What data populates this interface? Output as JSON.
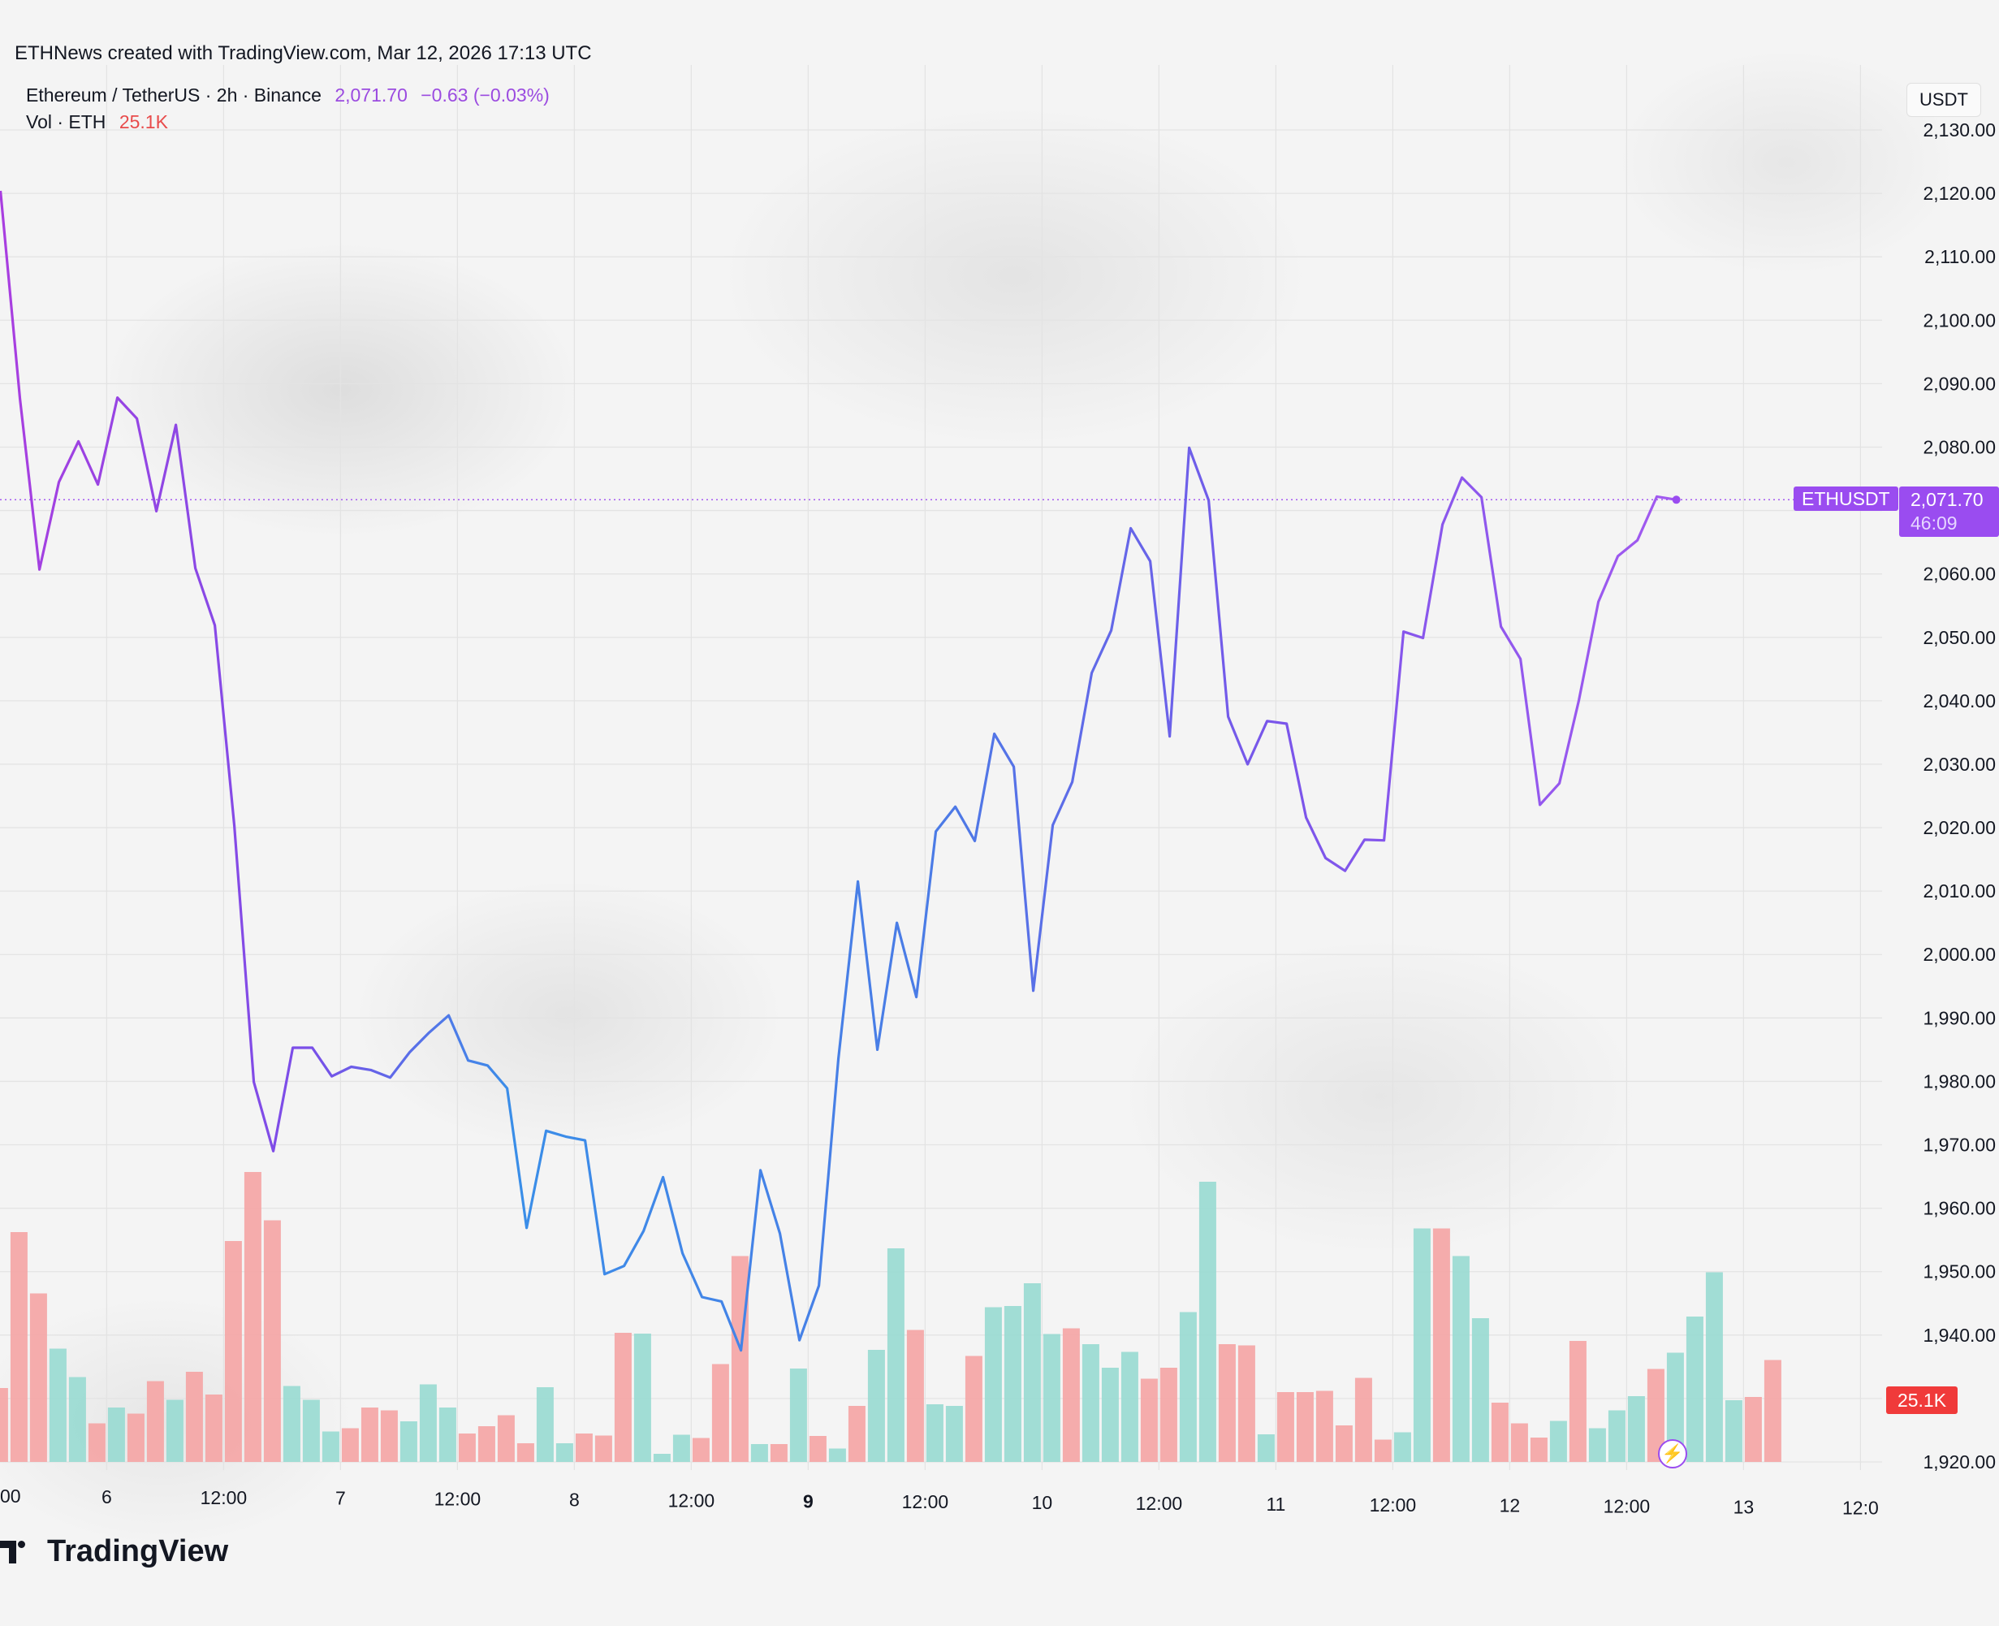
{
  "header": {
    "credit": "ETHNews created with TradingView.com, Mar 12, 2026 17:13 UTC"
  },
  "legend": {
    "symbol": "Ethereum / TetherUS · 2h · Binance",
    "last": "2,071.70",
    "change": "−0.63 (−0.03%)",
    "vol_label": "Vol · ETH",
    "vol_value": "25.1K"
  },
  "price_scale": {
    "unit": "USDT",
    "ticker_tag": "ETHUSDT",
    "last_price": "2,071.70",
    "countdown": "46:09",
    "volume_tag": "25.1K"
  },
  "brand": {
    "name": "TradingView"
  },
  "colors": {
    "line_start": "#a93ee0",
    "line_mid": "#3a8ee8",
    "line_end": "#a55af0",
    "vol_up": "#98dad2",
    "vol_down": "#f5a4a4",
    "accent": "#9a4cf0"
  },
  "chart_data": {
    "type": "line",
    "ylabel": "USDT",
    "ylim": [
      1920,
      2130
    ],
    "yticks": [
      "2,130.00",
      "2,120.00",
      "2,110.00",
      "2,100.00",
      "2,090.00",
      "2,080.00",
      "2,060.00",
      "2,050.00",
      "2,040.00",
      "2,030.00",
      "2,020.00",
      "2,010.00",
      "2,000.00",
      "1,990.00",
      "1,980.00",
      "1,970.00",
      "1,960.00",
      "1,950.00",
      "1,940.00",
      "1,920.00"
    ],
    "ytick_values": [
      2130,
      2120,
      2110,
      2100,
      2090,
      2080,
      2060,
      2050,
      2040,
      2030,
      2020,
      2010,
      2000,
      1990,
      1980,
      1970,
      1960,
      1950,
      1940,
      1920
    ],
    "xticks": [
      "00",
      "6",
      "12:00",
      "7",
      "12:00",
      "8",
      "12:00",
      "9",
      "12:00",
      "10",
      "12:00",
      "11",
      "12:00",
      "12",
      "12:00",
      "13",
      "12:0"
    ],
    "xtick_index": [
      -12,
      0,
      6,
      12,
      18,
      24,
      30,
      36,
      42,
      48,
      54,
      60,
      66,
      72,
      78,
      84,
      90
    ],
    "x_start_index": -5.5,
    "series": [
      {
        "values": [
          2120.4,
          2087.6,
          2060.7,
          2074.5,
          2080.9,
          2074.1,
          2087.8,
          2084.5,
          2069.9,
          2083.5,
          2060.9,
          2051.9,
          2020.3,
          1979.9,
          1969.0,
          1985.3,
          1985.3,
          1980.8,
          1982.3,
          1981.8,
          1980.6,
          1984.6,
          1987.7,
          1990.4,
          1983.3,
          1982.5,
          1978.9,
          1956.9,
          1972.2,
          1971.3,
          1970.7,
          1949.6,
          1950.9,
          1956.4,
          1964.9,
          1952.9,
          1946.0,
          1945.3,
          1937.6,
          1966.0,
          1956.0,
          1939.2,
          1947.8,
          1983.6,
          2011.5,
          1985.0,
          2005.0,
          1993.3,
          2019.4,
          2023.3,
          2017.9,
          2034.8,
          2029.6,
          1994.3,
          2020.4,
          2027.2,
          2044.4,
          2051.1,
          2067.2,
          2062.0,
          2034.4,
          2079.9,
          2071.6,
          2037.5,
          2030.0,
          2036.8,
          2036.4,
          2021.6,
          2015.2,
          2013.2,
          2018.1,
          2018.0,
          2050.9,
          2049.9,
          2067.8,
          2075.2,
          2072.1,
          2051.7,
          2046.6,
          2023.6,
          2027.0,
          2040.1,
          2055.6,
          2062.8,
          2065.3,
          2072.2,
          2071.7
        ]
      }
    ],
    "volume_k": [
      18.2,
      56.6,
      41.5,
      27.9,
      20.9,
      9.5,
      13.4,
      11.9,
      19.9,
      15.3,
      22.2,
      16.6,
      54.4,
      71.4,
      59.5,
      18.7,
      15.3,
      7.5,
      8.3,
      13.4,
      12.7,
      10.0,
      19.1,
      13.4,
      7.0,
      8.8,
      11.5,
      4.6,
      18.4,
      4.6,
      7.0,
      6.5,
      31.8,
      31.6,
      2.0,
      6.7,
      5.9,
      24.1,
      50.7,
      4.4,
      4.4,
      23.0,
      6.4,
      3.3,
      13.8,
      27.6,
      52.6,
      32.5,
      14.2,
      13.8,
      26.1,
      38.1,
      38.4,
      44.0,
      31.5,
      32.9,
      29.0,
      23.2,
      27.1,
      20.5,
      23.2,
      36.9,
      69.0,
      29.0,
      28.7,
      6.8,
      17.2,
      17.2,
      17.5,
      9.0,
      20.7,
      5.5,
      7.3,
      57.5,
      57.5,
      50.7,
      35.4,
      14.6,
      9.5,
      6.0,
      10.1,
      29.8,
      8.3,
      12.7,
      16.2,
      22.9,
      26.9,
      35.8,
      46.7,
      15.2,
      16.0,
      25.1
    ],
    "volume_up": [
      false,
      false,
      false,
      true,
      true,
      false,
      true,
      false,
      false,
      true,
      false,
      false,
      false,
      false,
      false,
      true,
      true,
      true,
      false,
      false,
      false,
      true,
      true,
      true,
      false,
      false,
      false,
      false,
      true,
      true,
      false,
      false,
      false,
      true,
      true,
      true,
      false,
      false,
      false,
      true,
      false,
      true,
      false,
      true,
      false,
      true,
      true,
      false,
      true,
      true,
      false,
      true,
      true,
      true,
      true,
      false,
      true,
      true,
      true,
      false,
      false,
      true,
      true,
      false,
      false,
      true,
      false,
      false,
      false,
      false,
      false,
      false,
      true,
      true,
      false,
      true,
      true,
      false,
      false,
      false,
      true,
      false,
      true,
      true,
      true,
      false,
      true,
      true,
      true,
      true,
      false,
      false
    ]
  }
}
